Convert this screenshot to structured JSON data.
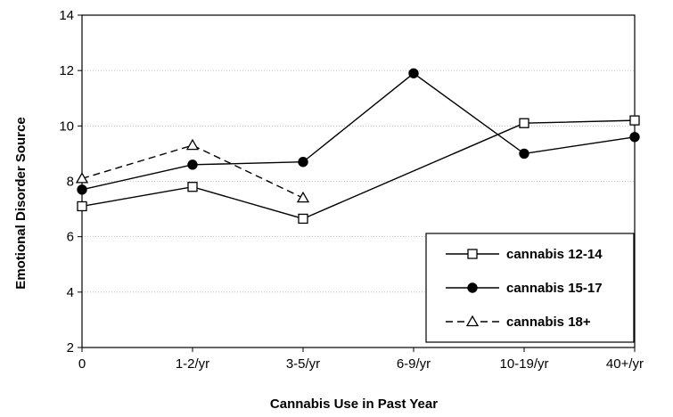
{
  "chart_data": {
    "type": "line",
    "title": "",
    "xlabel": "Cannabis Use in Past Year",
    "ylabel": "Emotional Disorder Source",
    "categories": [
      "0",
      "1-2/yr",
      "3-5/yr",
      "6-9/yr",
      "10-19/yr",
      "40+/yr"
    ],
    "ylim": [
      2,
      14
    ],
    "yticks": [
      "2",
      "4",
      "6",
      "8",
      "10",
      "12",
      "14"
    ],
    "grid": true,
    "legend_position": "bottom-right",
    "series": [
      {
        "name": "cannabis 12-14",
        "marker": "open-square",
        "dash": "solid",
        "values": [
          7.1,
          7.8,
          6.65,
          null,
          10.1,
          10.2
        ]
      },
      {
        "name": "cannabis 15-17",
        "marker": "filled-circle",
        "dash": "solid",
        "values": [
          7.7,
          8.6,
          8.7,
          11.9,
          9.0,
          9.6
        ]
      },
      {
        "name": "cannabis 18+",
        "marker": "open-triangle",
        "dash": "dashed",
        "values": [
          8.1,
          9.3,
          7.4,
          null,
          null,
          null
        ]
      }
    ]
  }
}
